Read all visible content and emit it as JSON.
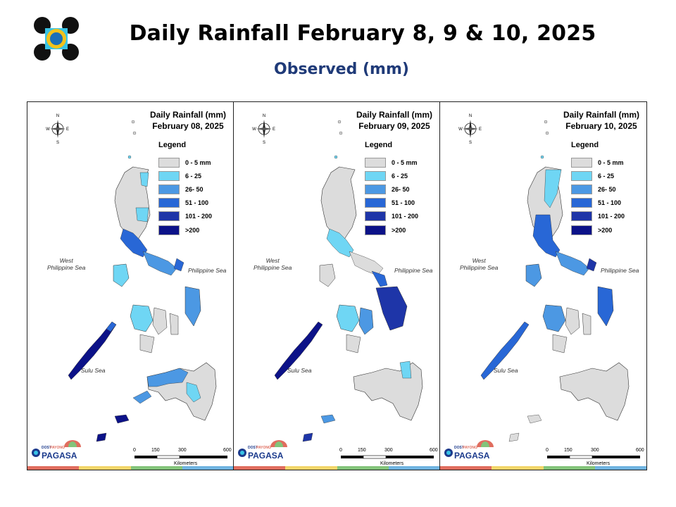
{
  "header": {
    "title": "Daily Rainfall February 8, 9 & 10, 2025",
    "subtitle": "Observed (mm)"
  },
  "panels": [
    {
      "title_line1": "Daily Rainfall (mm)",
      "title_line2": "February 08, 2025"
    },
    {
      "title_line1": "Daily Rainfall (mm)",
      "title_line2": "February 09, 2025"
    },
    {
      "title_line1": "Daily Rainfall (mm)",
      "title_line2": "February 10, 2025"
    }
  ],
  "legend": {
    "title": "Legend",
    "items": [
      {
        "label": "0 - 5 mm",
        "color": "#dcdcdc"
      },
      {
        "label": "6 - 25",
        "color": "#6fd6f4"
      },
      {
        "label": "26- 50",
        "color": "#4c98e3"
      },
      {
        "label": "51 - 100",
        "color": "#2867d6"
      },
      {
        "label": "101 - 200",
        "color": "#1e35a8"
      },
      {
        "label": ">200",
        "color": "#0c1288"
      }
    ]
  },
  "compass": {
    "n": "N",
    "s": "S",
    "e": "E",
    "w": "W"
  },
  "seas": {
    "west_line1": "West",
    "west_line2": "Philippine Sea",
    "east": "Philippine Sea",
    "south": "Sulu Sea"
  },
  "scale": {
    "t0": "0",
    "t1": "150",
    "t2": "300",
    "t3": "600",
    "unit": "Kilometers"
  },
  "branding": {
    "name": "PAGASA",
    "tag": "DOST",
    "brand2": "PAYONG",
    "color": "#1b3a8c"
  },
  "band_colors": [
    "#e06d5e",
    "#f3d569",
    "#83c47a",
    "#6fb3e0"
  ]
}
